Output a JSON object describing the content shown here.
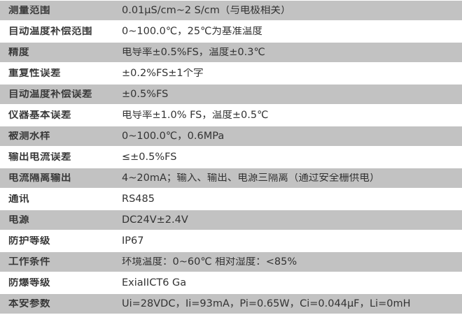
{
  "colors": {
    "stripe_gray": "#c2c2c2",
    "row_white": "#ffffff",
    "text": "#333333"
  },
  "table": {
    "rows": [
      {
        "label": "测量范围",
        "value": "0.01μS/cm~2 S/cm（与电极相关）"
      },
      {
        "label": "自动温度补偿范围",
        "value": "0~100.0℃，25℃为基准温度"
      },
      {
        "label": "精度",
        "value": "电导率±0.5%FS，温度±0.3℃"
      },
      {
        "label": "重复性误差",
        "value": "±0.2%FS±1个字"
      },
      {
        "label": "自动温度补偿误差",
        "value": "±0.5%FS"
      },
      {
        "label": "仪器基本误差",
        "value": "电导率±1.0% FS，温度±0.5℃"
      },
      {
        "label": "被测水样",
        "value": "0~100.0℃，0.6MPa"
      },
      {
        "label": "输出电流误差",
        "value": "≤±0.5%FS"
      },
      {
        "label": "电流隔离输出",
        "value": "4~20mA；输入、输出、电源三隔离（通过安全栅供电）"
      },
      {
        "label": "通讯",
        "value": "RS485"
      },
      {
        "label": "电源",
        "value": "DC24V±2.4V"
      },
      {
        "label": "防护等级",
        "value": "IP67"
      },
      {
        "label": "工作条件",
        "value": "环境温度：0~60℃ 相对湿度：<85%"
      },
      {
        "label": "防爆等级",
        "value": "ExiaIICT6 Ga"
      },
      {
        "label": "本安参数",
        "value": "Ui=28VDC，Ii=93mA，Pi=0.65W，Ci=0.044μF，Li=0mH"
      }
    ]
  }
}
